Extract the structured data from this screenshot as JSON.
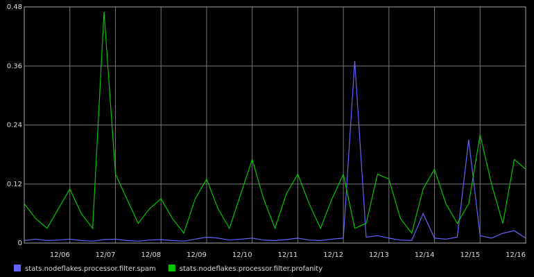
{
  "chart_data": {
    "type": "line",
    "x": [
      0,
      0.25,
      0.5,
      0.75,
      1,
      1.25,
      1.5,
      1.75,
      2,
      2.25,
      2.5,
      2.75,
      3,
      3.25,
      3.5,
      3.75,
      4,
      4.25,
      4.5,
      4.75,
      5,
      5.25,
      5.5,
      5.75,
      6,
      6.25,
      6.5,
      6.75,
      7,
      7.25,
      7.5,
      7.75,
      8,
      8.25,
      8.5,
      8.75,
      9,
      9.25,
      9.5,
      9.75,
      10,
      10.25,
      10.5,
      10.75,
      11
    ],
    "xlim": [
      0,
      11
    ],
    "xticks": [
      {
        "value": 1,
        "label": "12/06"
      },
      {
        "value": 2,
        "label": "12/07"
      },
      {
        "value": 3,
        "label": "12/08"
      },
      {
        "value": 4,
        "label": "12/09"
      },
      {
        "value": 5,
        "label": "12/10"
      },
      {
        "value": 6,
        "label": "12/11"
      },
      {
        "value": 7,
        "label": "12/12"
      },
      {
        "value": 8,
        "label": "12/13"
      },
      {
        "value": 9,
        "label": "12/14"
      },
      {
        "value": 10,
        "label": "12/15"
      },
      {
        "value": 11,
        "label": "12/16"
      }
    ],
    "ylim": [
      0,
      0.48
    ],
    "yticks": [
      0,
      0.12,
      0.24,
      0.36,
      0.48
    ],
    "grid": true,
    "series": [
      {
        "name": "stats.nodeflakes.processor.filter.spam",
        "color": "#6464ff",
        "values": [
          0.005,
          0.008,
          0.005,
          0.006,
          0.008,
          0.005,
          0.004,
          0.007,
          0.008,
          0.005,
          0.004,
          0.006,
          0.007,
          0.005,
          0.004,
          0.008,
          0.012,
          0.01,
          0.006,
          0.008,
          0.01,
          0.006,
          0.005,
          0.007,
          0.01,
          0.006,
          0.005,
          0.008,
          0.01,
          0.37,
          0.012,
          0.015,
          0.01,
          0.006,
          0.005,
          0.06,
          0.01,
          0.008,
          0.012,
          0.21,
          0.015,
          0.01,
          0.02,
          0.025,
          0.01
        ]
      },
      {
        "name": "stats.nodeflakes.processor.filter.profanity",
        "color": "#00c800",
        "values": [
          0.08,
          0.05,
          0.03,
          0.07,
          0.11,
          0.06,
          0.03,
          0.47,
          0.14,
          0.09,
          0.04,
          0.07,
          0.09,
          0.05,
          0.02,
          0.09,
          0.13,
          0.07,
          0.03,
          0.1,
          0.17,
          0.09,
          0.03,
          0.1,
          0.14,
          0.08,
          0.03,
          0.09,
          0.14,
          0.03,
          0.04,
          0.14,
          0.13,
          0.05,
          0.02,
          0.11,
          0.15,
          0.08,
          0.04,
          0.08,
          0.22,
          0.12,
          0.04,
          0.17,
          0.15
        ]
      }
    ]
  }
}
